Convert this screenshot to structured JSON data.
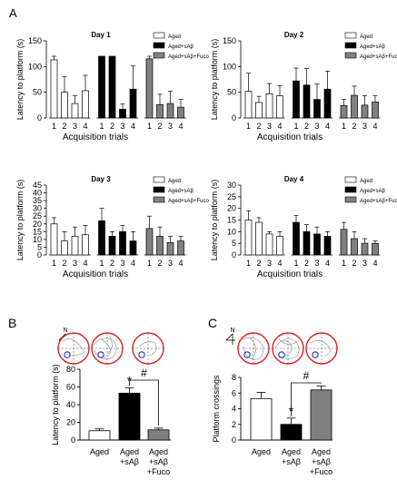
{
  "panel_letters": [
    "A",
    "B",
    "C"
  ],
  "compass_label": "N",
  "chart_data": [
    {
      "type": "bar",
      "title": "Day 1",
      "xlabel": "Acquisition trials",
      "ylabel": "Latency to platform (s)",
      "ylim": [
        0,
        150
      ],
      "yticks": [
        0,
        50,
        100,
        150
      ],
      "categories": [
        "1",
        "2",
        "3",
        "4"
      ],
      "legend_position": "top-right",
      "series": [
        {
          "name": "Aged",
          "color": "#ffffff",
          "values": [
            113,
            50,
            28,
            53
          ],
          "errors": [
            7,
            30,
            15,
            30
          ]
        },
        {
          "name": "Aged+sAβ",
          "color": "#000000",
          "values": [
            120,
            120,
            17,
            56
          ],
          "errors": [
            0,
            0,
            10,
            45
          ]
        },
        {
          "name": "Aged+sAβ+Fuco",
          "color": "#808080",
          "values": [
            115,
            26,
            28,
            21
          ],
          "errors": [
            5,
            20,
            24,
            15
          ]
        }
      ]
    },
    {
      "type": "bar",
      "title": "Day 2",
      "xlabel": "Acquisition trials",
      "ylabel": "Latency to platform (s)",
      "ylim": [
        0,
        150
      ],
      "yticks": [
        0,
        50,
        100,
        150
      ],
      "categories": [
        "1",
        "2",
        "3",
        "4"
      ],
      "legend_position": "top-right",
      "series": [
        {
          "name": "Aged",
          "color": "#ffffff",
          "values": [
            52,
            30,
            47,
            43
          ],
          "errors": [
            35,
            12,
            20,
            20
          ]
        },
        {
          "name": "Aged+sAβ",
          "color": "#000000",
          "values": [
            72,
            64,
            36,
            56
          ],
          "errors": [
            25,
            32,
            30,
            35
          ]
        },
        {
          "name": "Aged+sAβ+Fuco",
          "color": "#808080",
          "values": [
            24,
            44,
            25,
            31
          ],
          "errors": [
            12,
            18,
            18,
            12
          ]
        }
      ]
    },
    {
      "type": "bar",
      "title": "Day 3",
      "xlabel": "Acquisition trials",
      "ylabel": "Latency to platform (s)",
      "ylim": [
        0,
        45
      ],
      "yticks": [
        0,
        5,
        10,
        15,
        20,
        25,
        30,
        35,
        40,
        45
      ],
      "categories": [
        "1",
        "2",
        "3",
        "4"
      ],
      "legend_position": "top-right",
      "series": [
        {
          "name": "Aged",
          "color": "#ffffff",
          "values": [
            20,
            9,
            12,
            13
          ],
          "errors": [
            4,
            6,
            6,
            6
          ]
        },
        {
          "name": "Aged+sAβ",
          "color": "#000000",
          "values": [
            22,
            12,
            15,
            9
          ],
          "errors": [
            8,
            3,
            4,
            6
          ]
        },
        {
          "name": "Aged+sAβ+Fuco",
          "color": "#808080",
          "values": [
            17,
            12,
            8,
            9
          ],
          "errors": [
            8,
            6,
            4,
            3
          ]
        }
      ]
    },
    {
      "type": "bar",
      "title": "Day 4",
      "xlabel": "Acquisition trials",
      "ylabel": "Latency to platform (s)",
      "ylim": [
        0,
        30
      ],
      "yticks": [
        0,
        5,
        10,
        15,
        20,
        25,
        30
      ],
      "categories": [
        "1",
        "2",
        "3",
        "4"
      ],
      "legend_position": "top-right",
      "series": [
        {
          "name": "Aged",
          "color": "#ffffff",
          "values": [
            15,
            14,
            9,
            8
          ],
          "errors": [
            4,
            2,
            1,
            2
          ]
        },
        {
          "name": "Aged+sAβ",
          "color": "#000000",
          "values": [
            14,
            10,
            9,
            8
          ],
          "errors": [
            3,
            3,
            3,
            2
          ]
        },
        {
          "name": "Aged+sAβ+Fuco",
          "color": "#808080",
          "values": [
            11,
            7,
            5,
            5
          ],
          "errors": [
            3,
            3,
            2,
            1
          ]
        }
      ]
    },
    {
      "type": "bar",
      "xlabel": "",
      "ylabel": "Latency to platform (s)",
      "ylim": [
        0,
        80
      ],
      "yticks": [
        0,
        20,
        40,
        60,
        80
      ],
      "categories": [
        "Aged",
        "Aged +sAβ",
        "Aged +sAβ +Fuco"
      ],
      "category_lines": [
        [
          "Aged"
        ],
        [
          "Aged",
          "+sAβ"
        ],
        [
          "Aged",
          "+sAβ",
          "+Fuco"
        ]
      ],
      "colors": [
        "#ffffff",
        "#000000",
        "#808080"
      ],
      "values": [
        10.5,
        53,
        11.5
      ],
      "errors": [
        2,
        6,
        2
      ],
      "annotations": [
        "*",
        "#"
      ]
    },
    {
      "type": "bar",
      "xlabel": "",
      "ylabel": "Platform crossings",
      "ylim": [
        0,
        8
      ],
      "yticks": [
        0,
        2,
        4,
        6,
        8
      ],
      "categories": [
        "Aged",
        "Aged +sAβ",
        "Aged +sAβ +Fuco"
      ],
      "category_lines": [
        [
          "Aged"
        ],
        [
          "Aged",
          "+sAβ"
        ],
        [
          "Aged",
          "+sAβ",
          "+Fuco"
        ]
      ],
      "colors": [
        "#ffffff",
        "#000000",
        "#808080"
      ],
      "values": [
        5.3,
        2.0,
        6.4
      ],
      "errors": [
        0.8,
        0.8,
        0.5
      ],
      "annotations": [
        "*",
        "#"
      ]
    }
  ]
}
